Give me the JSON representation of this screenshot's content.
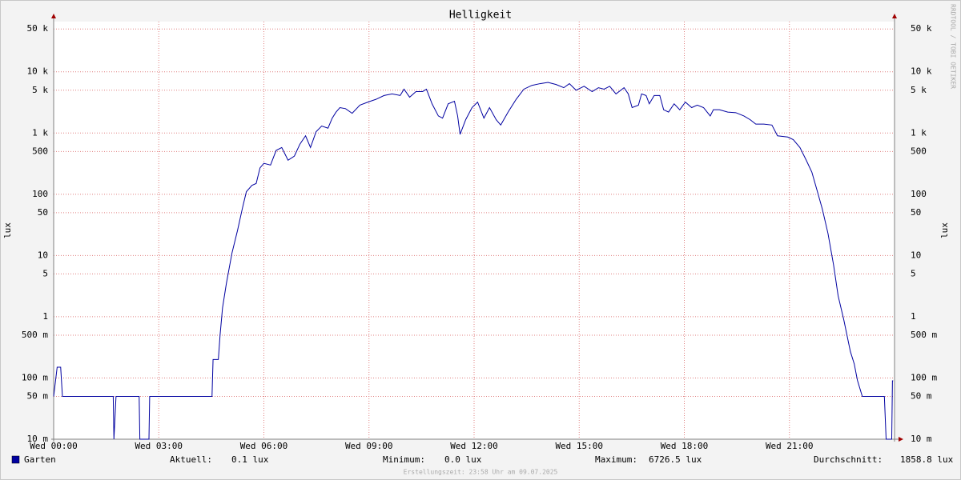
{
  "chart_data": {
    "type": "line",
    "title": "Helligkeit",
    "y_label": "lux",
    "log_y": true,
    "grid": true,
    "credit": "RRDTOOL / TOBI OETIKER",
    "footer": "Erstellungszeit: 23:58 Uhr am 09.07.2025",
    "xlim": [
      0,
      24
    ],
    "xticks": [
      {
        "value": 0,
        "label": "Wed 00:00"
      },
      {
        "value": 3,
        "label": "Wed 03:00"
      },
      {
        "value": 6,
        "label": "Wed 06:00"
      },
      {
        "value": 9,
        "label": "Wed 09:00"
      },
      {
        "value": 12,
        "label": "Wed 12:00"
      },
      {
        "value": 15,
        "label": "Wed 15:00"
      },
      {
        "value": 18,
        "label": "Wed 18:00"
      },
      {
        "value": 21,
        "label": "Wed 21:00"
      }
    ],
    "ylim": [
      0.01,
      66000
    ],
    "yticks": [
      {
        "value": 0.01,
        "label": "10 m"
      },
      {
        "value": 0.05,
        "label": "50 m"
      },
      {
        "value": 0.1,
        "label": "100 m"
      },
      {
        "value": 0.5,
        "label": "500 m"
      },
      1,
      5,
      10,
      50,
      100,
      500,
      {
        "value": 1000,
        "label": "1 k"
      },
      {
        "value": 5000,
        "label": "5 k"
      },
      {
        "value": 10000,
        "label": "10 k"
      },
      {
        "value": 50000,
        "label": "50 k"
      }
    ],
    "x": [
      0,
      0.1,
      0.2,
      0.25,
      1.7,
      1.72,
      1.78,
      2.44,
      2.46,
      2.72,
      2.74,
      4.52,
      4.55,
      4.7,
      4.75,
      4.82,
      4.93,
      5.09,
      5.25,
      5.39,
      5.5,
      5.66,
      5.78,
      5.89,
      6.0,
      6.19,
      6.35,
      6.51,
      6.69,
      6.87,
      7.03,
      7.19,
      7.33,
      7.49,
      7.65,
      7.83,
      7.95,
      8.06,
      8.17,
      8.33,
      8.52,
      8.74,
      8.97,
      9.2,
      9.43,
      9.66,
      9.89,
      10.0,
      10.16,
      10.34,
      10.53,
      10.64,
      10.8,
      10.98,
      11.1,
      11.26,
      11.44,
      11.53,
      11.6,
      11.76,
      11.94,
      12.1,
      12.28,
      12.44,
      12.63,
      12.76,
      12.97,
      13.2,
      13.42,
      13.65,
      13.88,
      14.11,
      14.34,
      14.56,
      14.72,
      14.91,
      15.14,
      15.37,
      15.55,
      15.71,
      15.87,
      16.05,
      16.28,
      16.4,
      16.51,
      16.69,
      16.78,
      16.91,
      17.0,
      17.14,
      17.3,
      17.41,
      17.55,
      17.71,
      17.87,
      18.03,
      18.21,
      18.37,
      18.55,
      18.74,
      18.83,
      19.0,
      19.24,
      19.47,
      19.7,
      19.88,
      20.04,
      20.27,
      20.5,
      20.66,
      20.95,
      21.11,
      21.3,
      21.48,
      21.64,
      21.8,
      21.94,
      22.1,
      22.26,
      22.39,
      22.55,
      22.74,
      22.85,
      22.94,
      23.08,
      23.71,
      23.76,
      23.92,
      23.94,
      23.96
    ],
    "series": [
      {
        "name": "Garten",
        "color": "#0000a0",
        "values": [
          0.05,
          0.15,
          0.15,
          0.05,
          0.05,
          0.01,
          0.05,
          0.05,
          0.01,
          0.01,
          0.05,
          0.05,
          0.2,
          0.2,
          0.5,
          1.4,
          3.5,
          11,
          26,
          60,
          110,
          140,
          150,
          270,
          320,
          300,
          520,
          580,
          360,
          420,
          660,
          900,
          580,
          1050,
          1300,
          1200,
          1750,
          2200,
          2600,
          2500,
          2100,
          2850,
          3200,
          3550,
          4100,
          4350,
          4100,
          5200,
          3850,
          4750,
          4750,
          5200,
          3000,
          1900,
          1750,
          3000,
          3300,
          1900,
          950,
          1650,
          2600,
          3200,
          1750,
          2600,
          1650,
          1350,
          2200,
          3550,
          5200,
          6000,
          6400,
          6700,
          6200,
          5500,
          6400,
          5000,
          5800,
          4750,
          5500,
          5200,
          5800,
          4350,
          5500,
          4350,
          2600,
          2850,
          4350,
          4100,
          3000,
          4100,
          4100,
          2400,
          2200,
          3000,
          2400,
          3200,
          2600,
          2850,
          2600,
          1900,
          2400,
          2400,
          2200,
          2150,
          1900,
          1650,
          1400,
          1400,
          1350,
          900,
          860,
          780,
          580,
          360,
          230,
          110,
          57,
          23,
          7,
          2.2,
          0.9,
          0.27,
          0.17,
          0.092,
          0.05,
          0.05,
          0.01,
          0.01,
          0.09,
          0.09
        ]
      }
    ],
    "stats": [
      {
        "label": "Aktuell:",
        "value": "0.1 lux"
      },
      {
        "label": "Minimum:",
        "value": "0.0 lux"
      },
      {
        "label": "Maximum:",
        "value": "6726.5 lux"
      },
      {
        "label": "Durchschnitt:",
        "value": "1858.8 lux"
      }
    ]
  }
}
